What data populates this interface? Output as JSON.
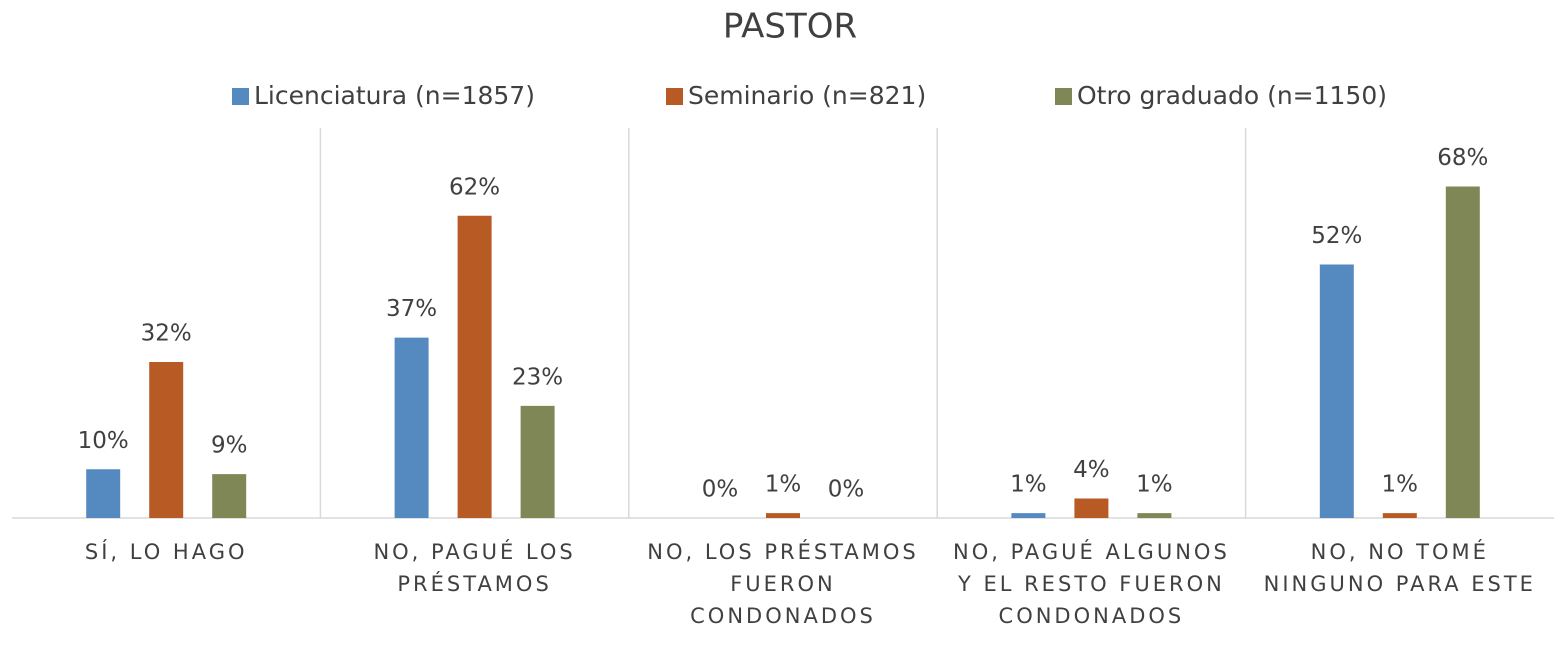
{
  "chart_data": {
    "type": "bar",
    "title": "PASTOR",
    "categories": [
      "SÍ, LO HAGO",
      "NO, PAGUÉ LOS PRÉSTAMOS",
      "NO, LOS PRÉSTAMOS FUERON CONDONADOS",
      "NO, PAGUÉ ALGUNOS Y EL RESTO FUERON CONDONADOS",
      "NO, NO TOMÉ NINGUNO PARA ESTE"
    ],
    "series": [
      {
        "name": "Licenciatura (n=1857)",
        "color": "#558ac0",
        "values": [
          10,
          37,
          0,
          1,
          52
        ],
        "value_labels": [
          "10%",
          "37%",
          "0%",
          "1%",
          "52%"
        ]
      },
      {
        "name": "Seminario (n=821)",
        "color": "#b85a24",
        "values": [
          32,
          62,
          1,
          4,
          1
        ],
        "value_labels": [
          "32%",
          "62%",
          "1%",
          "4%",
          "1%"
        ]
      },
      {
        "name": "Otro graduado (n=1150)",
        "color": "#7f8756",
        "values": [
          9,
          23,
          0,
          1,
          68
        ],
        "value_labels": [
          "9%",
          "23%",
          "0%",
          "1%",
          "68%"
        ]
      }
    ],
    "ylim": [
      0,
      80
    ]
  }
}
